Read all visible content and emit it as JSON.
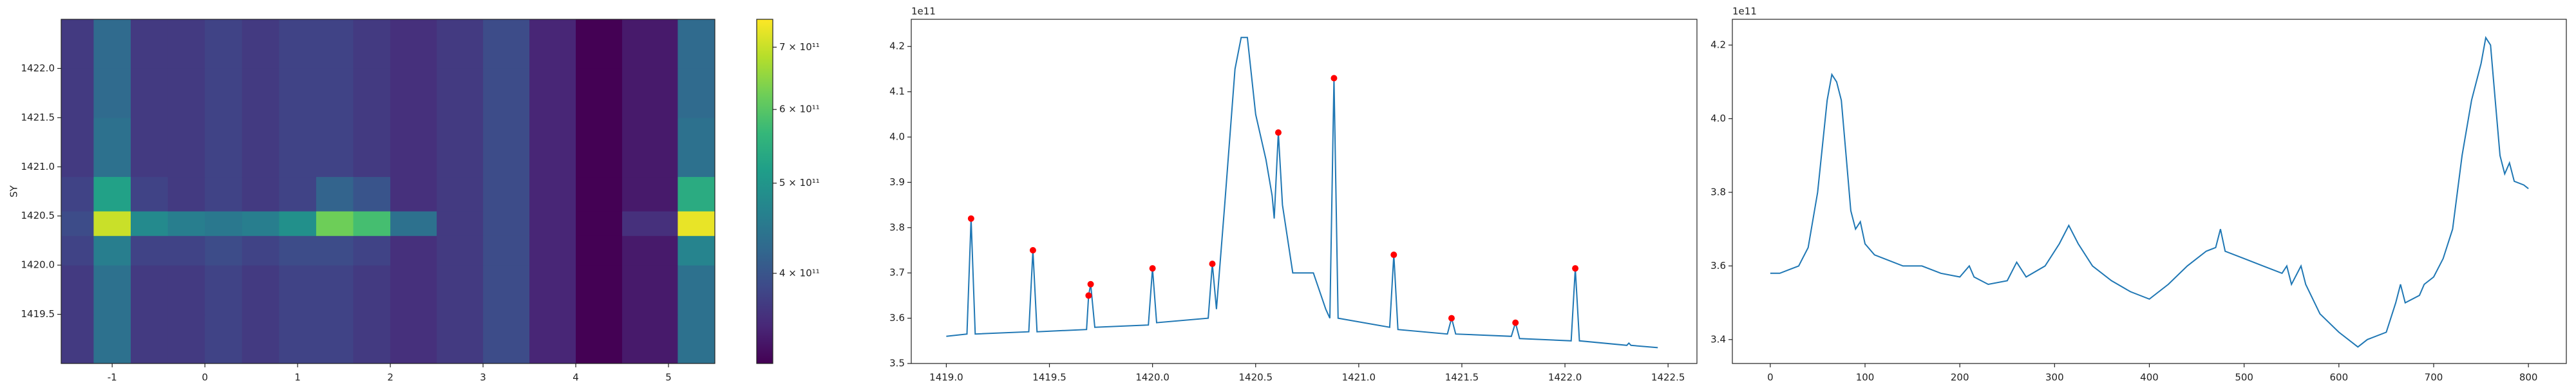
{
  "chart_data": [
    {
      "type": "heatmap",
      "ylabel": "SY",
      "xbins": [
        -1.55,
        -1.2,
        -0.8,
        -0.4,
        0,
        0.4,
        0.8,
        1.2,
        1.6,
        2.0,
        2.5,
        3.0,
        3.5,
        4.0,
        4.5,
        5.1,
        5.5
      ],
      "ybins": [
        1419.0,
        1419.5,
        1420.0,
        1420.3,
        1420.55,
        1420.9,
        1421.5,
        1422.0,
        1422.5
      ],
      "values": [
        [
          370000000000.0,
          440000000000.0,
          370000000000.0,
          370000000000.0,
          380000000000.0,
          370000000000.0,
          380000000000.0,
          380000000000.0,
          370000000000.0,
          360000000000.0,
          370000000000.0,
          390000000000.0,
          350000000000.0,
          320000000000.0,
          340000000000.0,
          440000000000.0
        ],
        [
          370000000000.0,
          440000000000.0,
          370000000000.0,
          370000000000.0,
          380000000000.0,
          370000000000.0,
          380000000000.0,
          380000000000.0,
          370000000000.0,
          360000000000.0,
          370000000000.0,
          390000000000.0,
          350000000000.0,
          320000000000.0,
          340000000000.0,
          440000000000.0
        ],
        [
          380000000000.0,
          460000000000.0,
          380000000000.0,
          380000000000.0,
          390000000000.0,
          380000000000.0,
          390000000000.0,
          390000000000.0,
          380000000000.0,
          360000000000.0,
          370000000000.0,
          390000000000.0,
          350000000000.0,
          320000000000.0,
          340000000000.0,
          470000000000.0
        ],
        [
          390000000000.0,
          700000000000.0,
          480000000000.0,
          460000000000.0,
          450000000000.0,
          460000000000.0,
          490000000000.0,
          620000000000.0,
          580000000000.0,
          440000000000.0,
          370000000000.0,
          390000000000.0,
          350000000000.0,
          320000000000.0,
          360000000000.0,
          730000000000.0
        ],
        [
          380000000000.0,
          520000000000.0,
          380000000000.0,
          370000000000.0,
          380000000000.0,
          370000000000.0,
          380000000000.0,
          420000000000.0,
          400000000000.0,
          360000000000.0,
          370000000000.0,
          390000000000.0,
          350000000000.0,
          320000000000.0,
          340000000000.0,
          540000000000.0
        ],
        [
          370000000000.0,
          440000000000.0,
          370000000000.0,
          370000000000.0,
          380000000000.0,
          370000000000.0,
          380000000000.0,
          380000000000.0,
          370000000000.0,
          360000000000.0,
          370000000000.0,
          390000000000.0,
          350000000000.0,
          320000000000.0,
          340000000000.0,
          440000000000.0
        ],
        [
          370000000000.0,
          430000000000.0,
          370000000000.0,
          370000000000.0,
          380000000000.0,
          370000000000.0,
          380000000000.0,
          380000000000.0,
          370000000000.0,
          360000000000.0,
          370000000000.0,
          390000000000.0,
          350000000000.0,
          320000000000.0,
          340000000000.0,
          430000000000.0
        ],
        [
          370000000000.0,
          430000000000.0,
          370000000000.0,
          370000000000.0,
          380000000000.0,
          370000000000.0,
          380000000000.0,
          380000000000.0,
          370000000000.0,
          360000000000.0,
          370000000000.0,
          390000000000.0,
          350000000000.0,
          320000000000.0,
          340000000000.0,
          430000000000.0
        ]
      ],
      "xlim": [
        -1.55,
        5.5
      ],
      "xticks": [
        -1,
        0,
        1,
        2,
        3,
        4,
        5
      ],
      "ylim": [
        1419.0,
        1422.5
      ],
      "yticks": [
        1419.5,
        {
          "value": 1420,
          "label": "1420.0"
        },
        1420.5,
        {
          "value": 1421,
          "label": "1421.0"
        },
        1421.5,
        {
          "value": 1422,
          "label": "1422.0"
        }
      ],
      "colormap": "viridis",
      "clim": [
        320000000000.0,
        750000000000.0
      ],
      "color_scale": "log",
      "cticks": [
        {
          "value": 400000000000.0,
          "label": "4 × 10¹¹"
        },
        {
          "value": 500000000000.0,
          "label": "5 × 10¹¹"
        },
        {
          "value": 600000000000.0,
          "label": "6 × 10¹¹"
        },
        {
          "value": 700000000000.0,
          "label": "7 × 10¹¹"
        }
      ]
    },
    {
      "type": "line",
      "y_offset_label": "1e11",
      "series": [
        {
          "color": "#1f77b4",
          "style": "line",
          "x": [
            1419.0,
            1419.1,
            1419.12,
            1419.14,
            1419.4,
            1419.42,
            1419.44,
            1419.68,
            1419.69,
            1419.7,
            1419.72,
            1419.98,
            1420.0,
            1420.02,
            1420.27,
            1420.29,
            1420.31,
            1420.35,
            1420.4,
            1420.43,
            1420.46,
            1420.5,
            1420.55,
            1420.58,
            1420.59,
            1420.61,
            1420.63,
            1420.68,
            1420.78,
            1420.84,
            1420.86,
            1420.88,
            1420.9,
            1421.15,
            1421.17,
            1421.19,
            1421.43,
            1421.45,
            1421.47,
            1421.74,
            1421.76,
            1421.78,
            1422.03,
            1422.05,
            1422.07,
            1422.3,
            1422.31,
            1422.32,
            1422.45
          ],
          "values": [
            3.56,
            3.565,
            3.82,
            3.565,
            3.57,
            3.75,
            3.57,
            3.575,
            3.65,
            3.675,
            3.58,
            3.585,
            3.71,
            3.59,
            3.6,
            3.72,
            3.62,
            3.85,
            4.15,
            4.22,
            4.22,
            4.05,
            3.95,
            3.87,
            3.82,
            4.01,
            3.85,
            3.7,
            3.7,
            3.62,
            3.6,
            4.13,
            3.6,
            3.58,
            3.74,
            3.575,
            3.565,
            3.6,
            3.565,
            3.56,
            3.59,
            3.555,
            3.55,
            3.71,
            3.55,
            3.54,
            3.545,
            3.54,
            3.535
          ]
        },
        {
          "color": "red",
          "style": "markers",
          "x": [
            1419.12,
            1419.42,
            1419.69,
            1419.7,
            1420.0,
            1420.29,
            1420.61,
            1420.88,
            1421.17,
            1421.45,
            1421.76,
            1422.05
          ],
          "values": [
            3.82,
            3.75,
            3.65,
            3.675,
            3.71,
            3.72,
            4.01,
            4.13,
            3.74,
            3.6,
            3.59,
            3.71
          ]
        }
      ],
      "xlim": [
        1418.83,
        1422.64
      ],
      "xticks": [
        {
          "value": 1419,
          "label": "1419.0"
        },
        1419.5,
        {
          "value": 1420,
          "label": "1420.0"
        },
        1420.5,
        {
          "value": 1421,
          "label": "1421.0"
        },
        1421.5,
        {
          "value": 1422,
          "label": "1422.0"
        },
        1422.5
      ],
      "ylim": [
        3.5,
        4.26
      ],
      "yticks": [
        3.5,
        3.6,
        3.7,
        3.8,
        3.9,
        {
          "value": 4,
          "label": "4.0"
        },
        4.1,
        4.2
      ]
    },
    {
      "type": "line",
      "y_offset_label": "1e11",
      "series": [
        {
          "color": "#1f77b4",
          "style": "line",
          "x": [
            0,
            10,
            20,
            30,
            40,
            50,
            60,
            65,
            70,
            75,
            80,
            85,
            90,
            95,
            100,
            110,
            120,
            140,
            160,
            180,
            200,
            210,
            215,
            230,
            250,
            260,
            270,
            290,
            305,
            315,
            325,
            340,
            360,
            380,
            400,
            420,
            440,
            460,
            470,
            475,
            480,
            500,
            520,
            540,
            545,
            550,
            560,
            565,
            580,
            600,
            620,
            630,
            650,
            660,
            665,
            670,
            685,
            690,
            700,
            710,
            720,
            730,
            740,
            750,
            755,
            760,
            765,
            770,
            775,
            780,
            785,
            795,
            800
          ],
          "values": [
            3.58,
            3.58,
            3.59,
            3.6,
            3.65,
            3.8,
            4.05,
            4.12,
            4.1,
            4.05,
            3.9,
            3.75,
            3.7,
            3.72,
            3.66,
            3.63,
            3.62,
            3.6,
            3.6,
            3.58,
            3.57,
            3.6,
            3.57,
            3.55,
            3.56,
            3.61,
            3.57,
            3.6,
            3.66,
            3.71,
            3.66,
            3.6,
            3.56,
            3.53,
            3.51,
            3.55,
            3.6,
            3.64,
            3.65,
            3.7,
            3.64,
            3.62,
            3.6,
            3.58,
            3.6,
            3.55,
            3.6,
            3.55,
            3.47,
            3.42,
            3.38,
            3.4,
            3.42,
            3.5,
            3.55,
            3.5,
            3.52,
            3.55,
            3.57,
            3.62,
            3.7,
            3.9,
            4.05,
            4.15,
            4.22,
            4.2,
            4.05,
            3.9,
            3.85,
            3.88,
            3.83,
            3.82,
            3.81
          ]
        }
      ],
      "xlim": [
        -40,
        840
      ],
      "xticks": [
        0,
        100,
        200,
        300,
        400,
        500,
        600,
        700,
        800
      ],
      "ylim": [
        3.335,
        4.27
      ],
      "yticks": [
        3.4,
        3.6,
        3.8,
        {
          "value": 4,
          "label": "4.0"
        },
        4.2
      ]
    }
  ]
}
